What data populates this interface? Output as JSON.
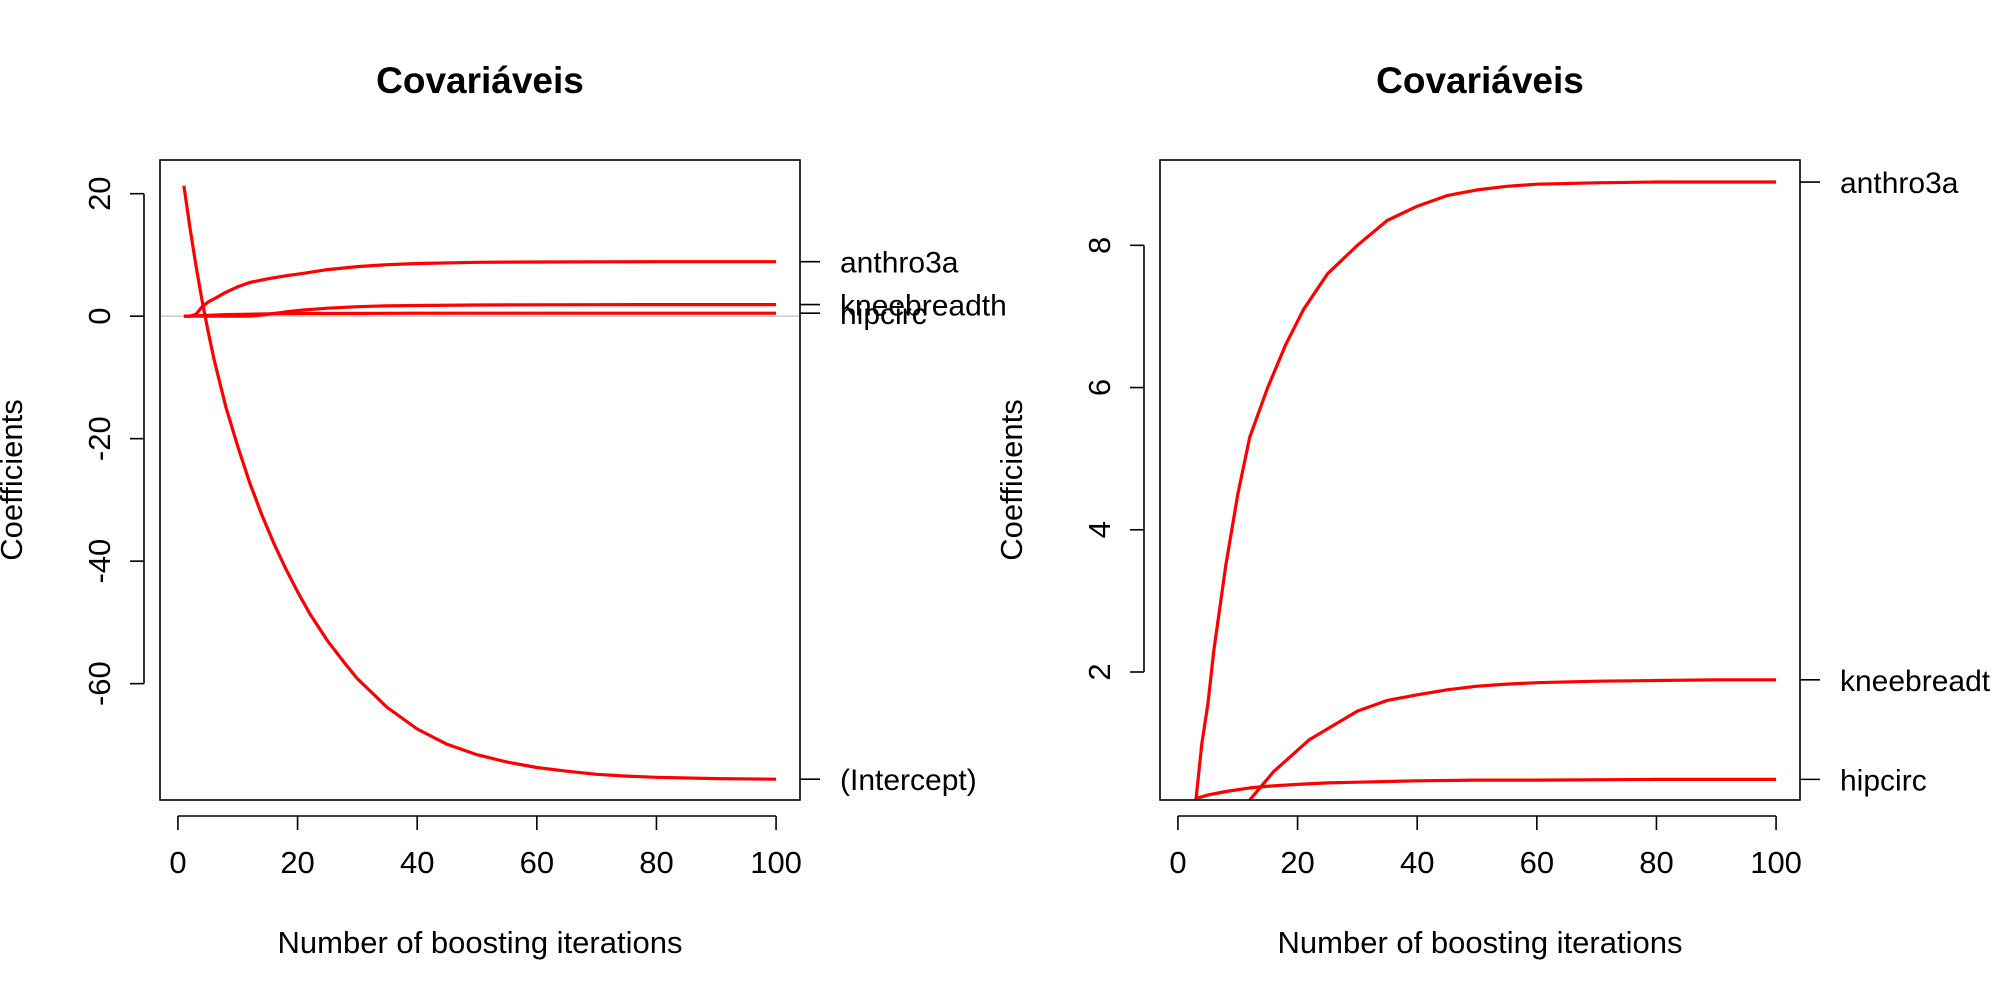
{
  "chart_data": [
    {
      "type": "line",
      "title": "Covariáveis",
      "xlabel": "Number of boosting iterations",
      "ylabel": "Coefficients",
      "xlim": [
        -3,
        104
      ],
      "ylim": [
        -79,
        25.5
      ],
      "xticks": [
        0,
        20,
        40,
        60,
        80,
        100
      ],
      "yticks": [
        20,
        0,
        -20,
        -40,
        -60
      ],
      "zero_line": true,
      "line_color": "#ff0000",
      "zero_line_color": "#cccccc",
      "series": [
        {
          "name": "anthro3a",
          "x": [
            1,
            2,
            3,
            4,
            5,
            6,
            8,
            10,
            12,
            15,
            18,
            21,
            25,
            30,
            35,
            40,
            50,
            60,
            70,
            80,
            90,
            100
          ],
          "y": [
            0,
            0,
            0.3,
            1.5,
            2.3,
            2.8,
            3.9,
            4.8,
            5.5,
            6.1,
            6.6,
            7.0,
            7.6,
            8.1,
            8.4,
            8.6,
            8.8,
            8.85,
            8.88,
            8.89,
            8.89,
            8.89
          ]
        },
        {
          "name": "kneebreadth",
          "x": [
            1,
            12,
            15,
            18,
            21,
            25,
            30,
            35,
            40,
            50,
            60,
            70,
            80,
            100
          ],
          "y": [
            0,
            0,
            0.3,
            0.7,
            1.0,
            1.3,
            1.55,
            1.7,
            1.75,
            1.83,
            1.86,
            1.88,
            1.89,
            1.89
          ]
        },
        {
          "name": "hipcirc",
          "x": [
            1,
            3,
            5,
            8,
            12,
            16,
            20,
            30,
            40,
            60,
            100
          ],
          "y": [
            0,
            0.05,
            0.15,
            0.25,
            0.33,
            0.4,
            0.43,
            0.46,
            0.48,
            0.49,
            0.49
          ]
        },
        {
          "name": "(Intercept)",
          "x": [
            1,
            2,
            3,
            4,
            5,
            6,
            8,
            10,
            12,
            14,
            16,
            18,
            20,
            22,
            25,
            28,
            30,
            35,
            40,
            45,
            50,
            55,
            60,
            65,
            70,
            75,
            80,
            90,
            100
          ],
          "y": [
            21.3,
            14.5,
            8.3,
            2.7,
            -2.3,
            -6.9,
            -14.8,
            -21.3,
            -27.2,
            -32.4,
            -37.0,
            -41.2,
            -45.0,
            -48.5,
            -53.0,
            -56.8,
            -59.2,
            -63.9,
            -67.4,
            -69.9,
            -71.6,
            -72.8,
            -73.7,
            -74.3,
            -74.8,
            -75.1,
            -75.3,
            -75.5,
            -75.6
          ]
        }
      ],
      "end_labels": [
        {
          "text": "anthro3a",
          "value": 8.89
        },
        {
          "text": "kneebreadth",
          "value": 1.89
        },
        {
          "text": "hipcirc",
          "value": 0.49
        },
        {
          "text": "(Intercept)",
          "value": -75.6
        }
      ]
    },
    {
      "type": "line",
      "title": "Covariáveis",
      "xlabel": "Number of boosting iterations",
      "ylabel": "Coefficients",
      "xlim": [
        -3,
        104
      ],
      "ylim": [
        0.2,
        9.2
      ],
      "xticks": [
        0,
        20,
        40,
        60,
        80,
        100
      ],
      "yticks": [
        8,
        6,
        4,
        2
      ],
      "zero_line": false,
      "line_color": "#ff0000",
      "series": [
        {
          "name": "anthro3a",
          "x": [
            3,
            4,
            5,
            6,
            8,
            10,
            12,
            15,
            18,
            21,
            25,
            30,
            35,
            40,
            45,
            50,
            55,
            60,
            70,
            80,
            90,
            100
          ],
          "y": [
            0.2,
            1.0,
            1.55,
            2.3,
            3.5,
            4.5,
            5.3,
            6.0,
            6.6,
            7.1,
            7.6,
            8.0,
            8.35,
            8.55,
            8.7,
            8.78,
            8.83,
            8.86,
            8.88,
            8.89,
            8.89,
            8.89
          ]
        },
        {
          "name": "kneebreadth",
          "x": [
            12,
            14,
            16,
            18,
            20,
            22,
            25,
            28,
            30,
            35,
            40,
            45,
            50,
            55,
            60,
            70,
            80,
            90,
            100
          ],
          "y": [
            0.2,
            0.4,
            0.6,
            0.75,
            0.9,
            1.05,
            1.2,
            1.35,
            1.45,
            1.6,
            1.68,
            1.75,
            1.8,
            1.83,
            1.85,
            1.87,
            1.88,
            1.89,
            1.89
          ]
        },
        {
          "name": "hipcirc",
          "x": [
            3,
            5,
            8,
            12,
            16,
            20,
            25,
            30,
            40,
            50,
            60,
            80,
            100
          ],
          "y": [
            0.22,
            0.27,
            0.32,
            0.37,
            0.4,
            0.42,
            0.44,
            0.45,
            0.47,
            0.48,
            0.48,
            0.49,
            0.49
          ]
        }
      ],
      "end_labels": [
        {
          "text": "anthro3a",
          "value": 8.89
        },
        {
          "text": "kneebreadt",
          "value": 1.89
        },
        {
          "text": "hipcirc",
          "value": 0.49
        }
      ]
    }
  ]
}
